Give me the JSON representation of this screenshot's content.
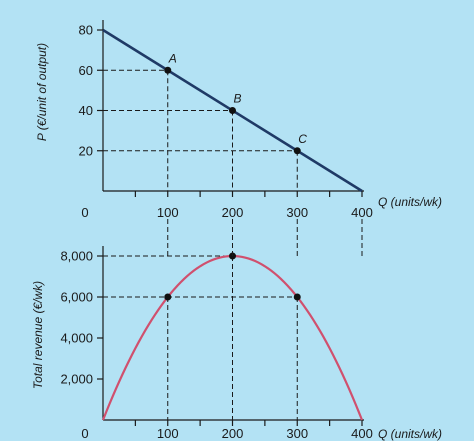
{
  "chart_data": [
    {
      "type": "line",
      "title": "",
      "xlabel": "Q (units/wk)",
      "ylabel": "P (€/unit of output)",
      "x_ticks": [
        100,
        200,
        300,
        400
      ],
      "x_tick_labels": [
        "100",
        "200",
        "300",
        "400"
      ],
      "y_ticks": [
        20,
        40,
        60,
        80
      ],
      "y_tick_labels": [
        "20",
        "40",
        "60",
        "80"
      ],
      "origin_label": "0",
      "xlim": [
        0,
        400
      ],
      "ylim": [
        0,
        80
      ],
      "grid": false,
      "series": [
        {
          "x": [
            0,
            400
          ],
          "y": [
            80,
            0
          ],
          "color": "#1f3a66"
        }
      ],
      "points": [
        {
          "label": "A",
          "x": 100,
          "y": 60
        },
        {
          "label": "B",
          "x": 200,
          "y": 40
        },
        {
          "label": "C",
          "x": 300,
          "y": 20
        }
      ]
    },
    {
      "type": "line",
      "title": "",
      "xlabel": "Q (units/wk)",
      "ylabel": "Total revenue (€/wk)",
      "x_ticks": [
        100,
        200,
        300,
        400
      ],
      "x_tick_labels": [
        "100",
        "200",
        "300",
        "400"
      ],
      "y_ticks": [
        2000,
        4000,
        6000,
        8000
      ],
      "y_tick_labels": [
        "2,000",
        "4,000",
        "6,000",
        "8,000"
      ],
      "origin_label": "0",
      "xlim": [
        0,
        400
      ],
      "ylim": [
        0,
        8000
      ],
      "grid": false,
      "series": [
        {
          "x": [
            0,
            50,
            100,
            150,
            200,
            250,
            300,
            350,
            400
          ],
          "y": [
            0,
            3500,
            6000,
            7500,
            8000,
            7500,
            6000,
            3500,
            0
          ],
          "color": "#d0506e"
        }
      ],
      "points": [
        {
          "x": 100,
          "y": 6000
        },
        {
          "x": 200,
          "y": 8000
        },
        {
          "x": 300,
          "y": 6000
        }
      ]
    }
  ]
}
